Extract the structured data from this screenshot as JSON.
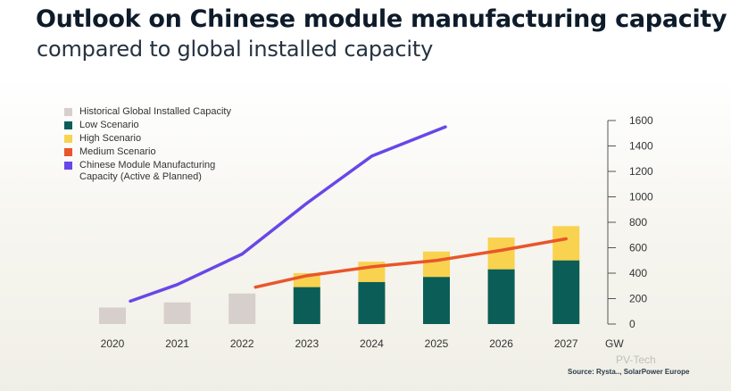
{
  "title": "Outlook on Chinese module manufacturing capacity",
  "subtitle": "compared to global installed capacity",
  "source": "Source: Rysta.., SolarPower Europe",
  "watermark": "PV-Tech",
  "colors": {
    "historical": "#d7cfcb",
    "low": "#0b5e58",
    "high": "#f9d24f",
    "medium": "#e8562a",
    "chinese": "#6747e8"
  },
  "chart_data": {
    "type": "bar",
    "categories": [
      "2020",
      "2021",
      "2022",
      "2023",
      "2024",
      "2025",
      "2026",
      "2027"
    ],
    "ylabel": "GW",
    "ylim": [
      0,
      1600
    ],
    "yticks": [
      0,
      200,
      400,
      600,
      800,
      1000,
      1200,
      1400,
      1600
    ],
    "legend_position": "top-left",
    "series": [
      {
        "name": "Historical Global Installed Capacity",
        "kind": "bar",
        "color": "#d7cfcb",
        "values": [
          130,
          170,
          240,
          null,
          null,
          null,
          null,
          null
        ]
      },
      {
        "name": "Low Scenario",
        "kind": "bar",
        "color": "#0b5e58",
        "values": [
          null,
          null,
          null,
          290,
          330,
          370,
          430,
          500
        ]
      },
      {
        "name": "High Scenario",
        "kind": "bar",
        "color": "#f9d24f",
        "values": [
          null,
          null,
          null,
          400,
          490,
          570,
          680,
          770
        ]
      },
      {
        "name": "Medium Scenario",
        "kind": "line",
        "color": "#e8562a",
        "values": [
          null,
          null,
          290,
          380,
          450,
          500,
          580,
          670
        ]
      },
      {
        "name": "Chinese Module Manufacturing Capacity (Active & Planned)",
        "kind": "line",
        "color": "#6747e8",
        "values": [
          180,
          310,
          550,
          950,
          1320,
          1550,
          null,
          null
        ]
      }
    ]
  }
}
